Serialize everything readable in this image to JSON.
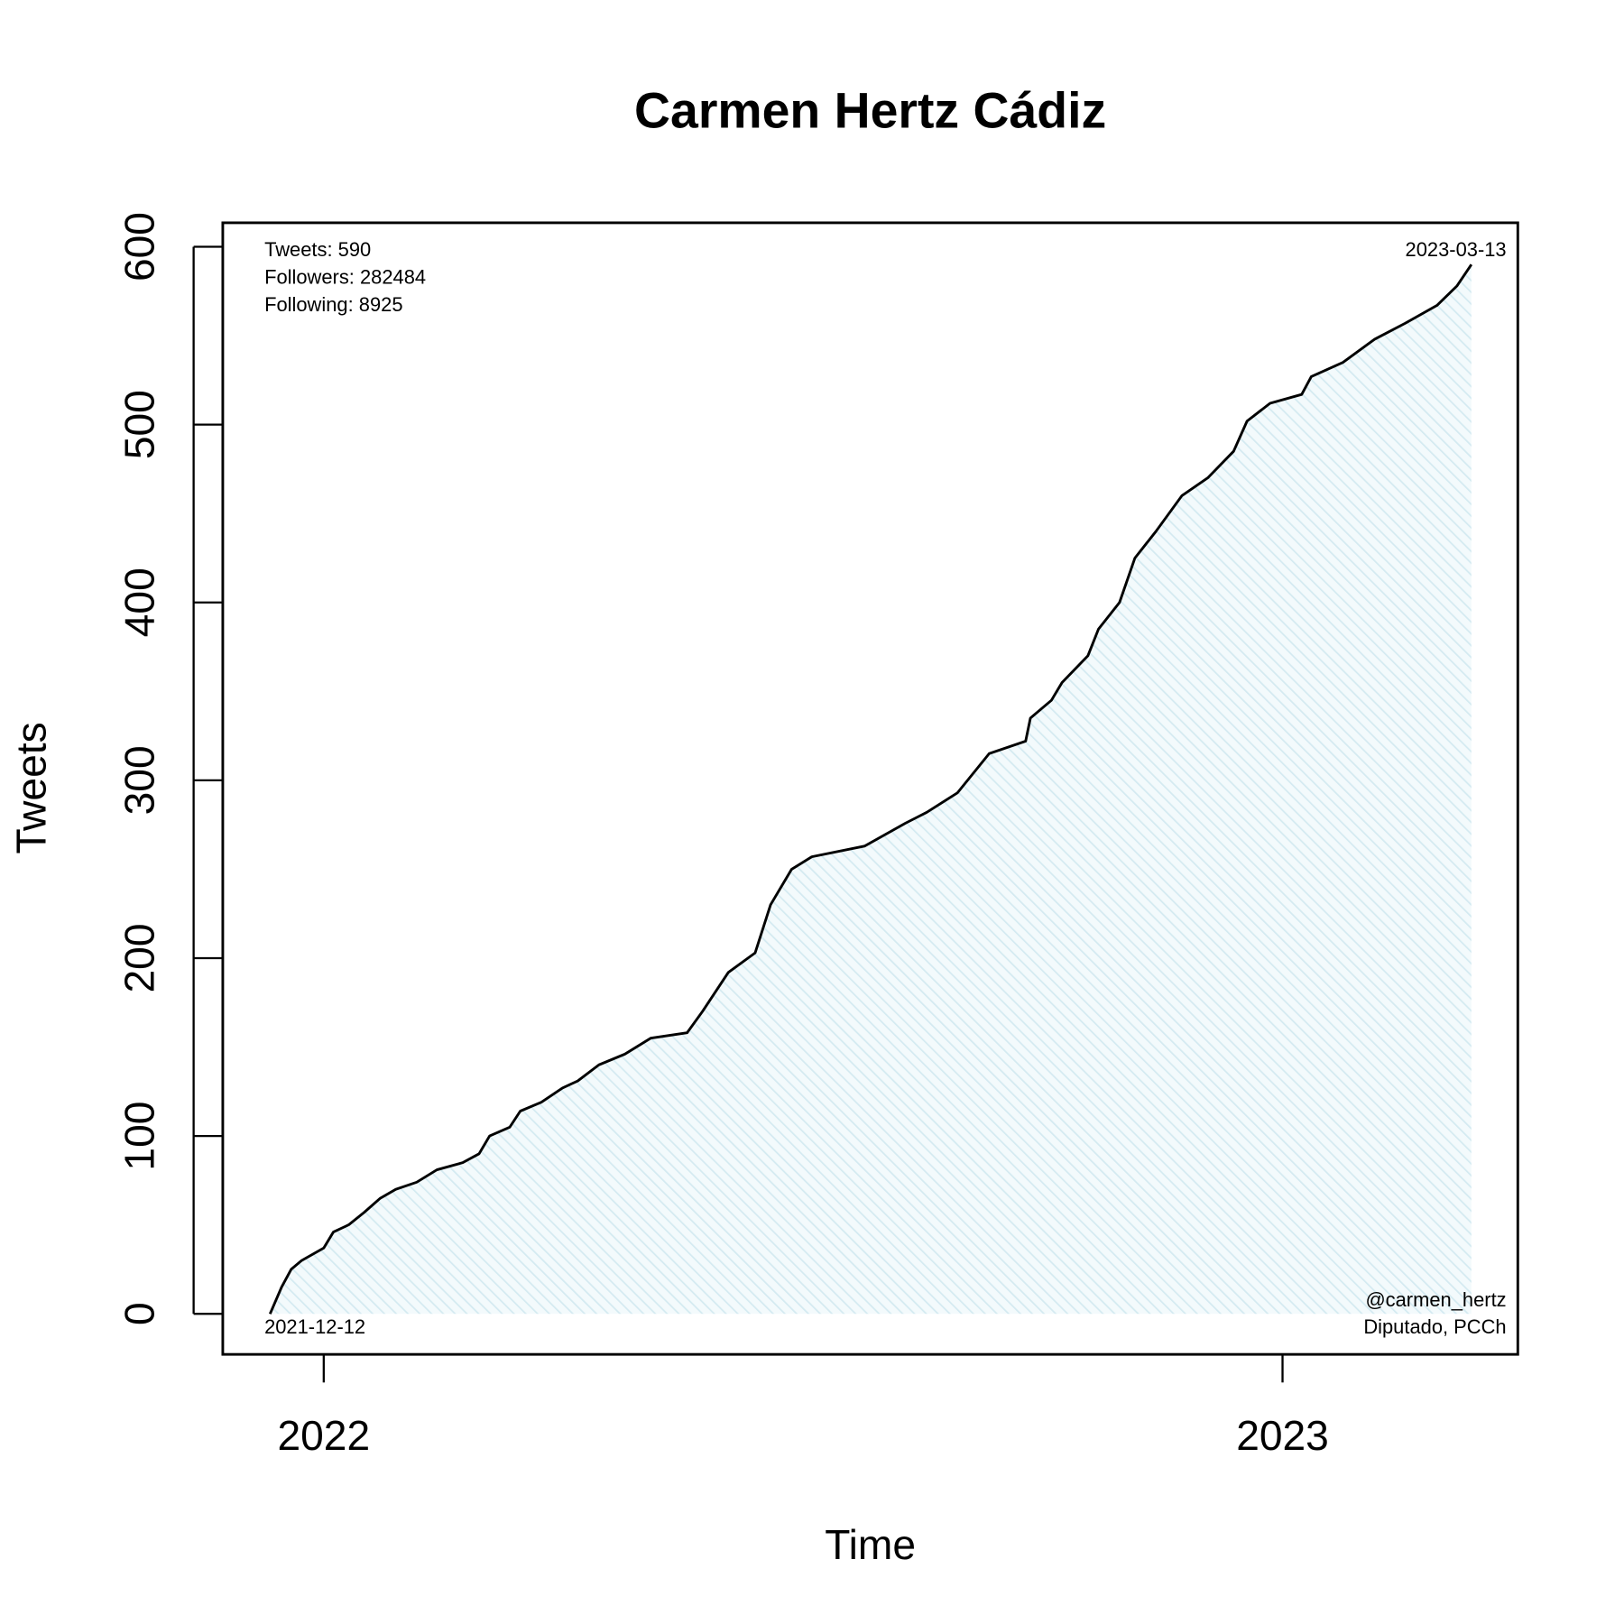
{
  "chart_data": {
    "type": "line",
    "title": "Carmen Hertz Cádiz",
    "x_label": "Time",
    "y_label": "Tweets",
    "annotations": {
      "top_left": [
        "Tweets: 590",
        "Followers: 282484",
        "Following: 8925"
      ],
      "top_right": "2023-03-13",
      "bottom_left": "2021-12-12",
      "bottom_right": [
        "@carmen_hertz",
        "Diputado, PCCh"
      ]
    },
    "x": [
      2021.944,
      2021.956,
      2021.966,
      2021.977,
      2022.0,
      2022.01,
      2022.026,
      2022.042,
      2022.059,
      2022.075,
      2022.097,
      2022.118,
      2022.145,
      2022.162,
      2022.173,
      2022.194,
      2022.205,
      2022.227,
      2022.249,
      2022.265,
      2022.287,
      2022.314,
      2022.341,
      2022.379,
      2022.395,
      2022.422,
      2022.45,
      2022.466,
      2022.488,
      2022.509,
      2022.564,
      2022.607,
      2022.629,
      2022.661,
      2022.694,
      2022.732,
      2022.737,
      2022.759,
      2022.77,
      2022.797,
      2022.808,
      2022.83,
      2022.846,
      2022.868,
      2022.895,
      2022.922,
      2022.949,
      2022.963,
      2022.987,
      2023.02,
      2023.03,
      2023.063,
      2023.096,
      2023.128,
      2023.161,
      2023.182,
      2023.197
    ],
    "series": [
      {
        "name": "Tweets",
        "color": "#000000",
        "fill": "#d4eaf1",
        "values": [
          0,
          15,
          25,
          30,
          37,
          46,
          50,
          57,
          65,
          70,
          74,
          81,
          85,
          90,
          100,
          105,
          114,
          119,
          127,
          131,
          140,
          146,
          155,
          158,
          170,
          192,
          203,
          230,
          250,
          257,
          263,
          276,
          282,
          293,
          315,
          322,
          335,
          345,
          355,
          370,
          385,
          400,
          425,
          440,
          460,
          470,
          485,
          502,
          512,
          517,
          527,
          535,
          548,
          557,
          567,
          578,
          590
        ]
      }
    ],
    "xlim": [
      2021.8947,
      2023.2454
    ],
    "xticks": [
      2022,
      2023
    ],
    "ylim": [
      -22.8,
      613.5
    ],
    "yticks": [
      0,
      100,
      200,
      300,
      400,
      500,
      600
    ],
    "grid": false
  }
}
